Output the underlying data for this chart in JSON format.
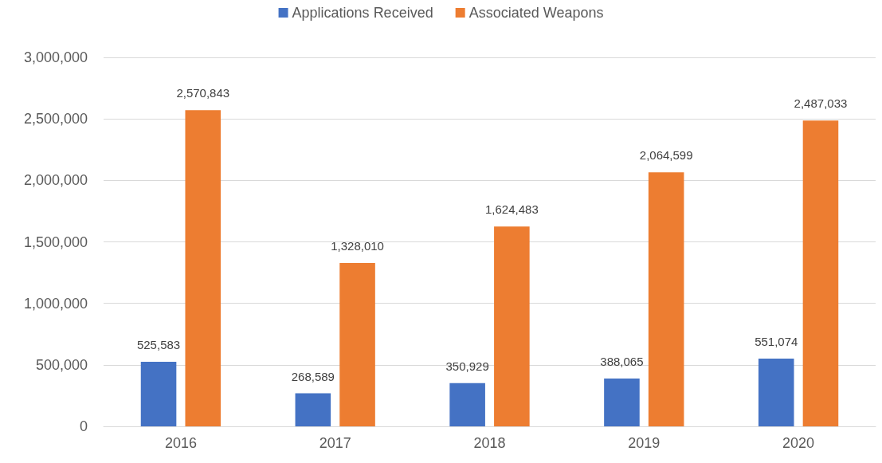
{
  "chart_data": {
    "type": "bar",
    "categories": [
      "2016",
      "2017",
      "2018",
      "2019",
      "2020"
    ],
    "series": [
      {
        "name": "Applications Received",
        "color": "#4472c4",
        "values": [
          525583,
          268589,
          350929,
          388065,
          551074
        ],
        "value_labels": [
          "525,583",
          "268,589",
          "350,929",
          "388,065",
          "551,074"
        ]
      },
      {
        "name": "Associated Weapons",
        "color": "#ed7d31",
        "values": [
          2570843,
          1328010,
          1624483,
          2064599,
          2487033
        ],
        "value_labels": [
          "2,570,843",
          "1,328,010",
          "1,624,483",
          "2,064,599",
          "2,487,033"
        ]
      }
    ],
    "ylim": [
      0,
      3000000
    ],
    "yticks": [
      0,
      {
        "value": 500000,
        "label": "500,000"
      },
      {
        "value": 1000000,
        "label": "1,000,000"
      },
      {
        "value": 1500000,
        "label": "1,500,000"
      },
      {
        "value": 2000000,
        "label": "2,000,000"
      },
      {
        "value": 2500000,
        "label": "2,500,000"
      },
      {
        "value": 3000000,
        "label": "3,000,000"
      }
    ],
    "grid": "y",
    "legend": "top"
  }
}
